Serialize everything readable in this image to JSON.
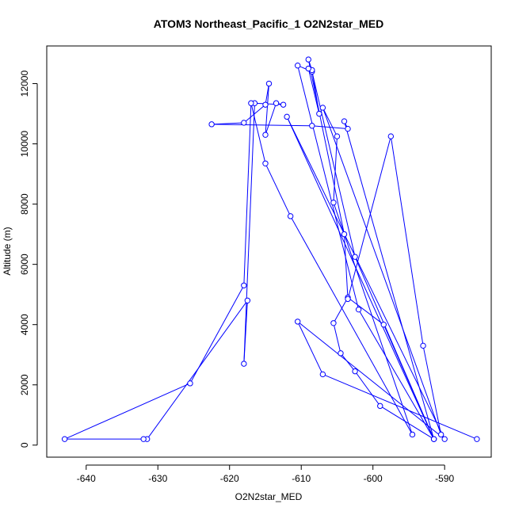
{
  "chart_data": {
    "type": "scatter",
    "title": "ATOM3 Northeast_Pacific_1 O2N2star_MED",
    "xlabel": "O2N2star_MED",
    "ylabel": "Altitude (m)",
    "xlim": [
      -645.5,
      -583.5
    ],
    "ylim": [
      -400,
      13250
    ],
    "x_ticks": [
      -640,
      -630,
      -620,
      -610,
      -600,
      -590
    ],
    "y_ticks": [
      0,
      2000,
      4000,
      6000,
      8000,
      10000,
      12000
    ],
    "grid": false,
    "legend": "none",
    "colors": {
      "series": "#0000ff",
      "axes": "#000000"
    },
    "series": [
      {
        "x": [
          -585.5,
          -607,
          -610.5,
          -590,
          -612,
          -591.5,
          -599,
          -602.5,
          -604.5,
          -605.5,
          -603.5,
          -598.5,
          -591.5,
          -602,
          -610.5,
          -608.5,
          -602.5,
          -591.5,
          -604,
          -603.5,
          -608.5,
          -622.5,
          -618,
          -615,
          -614.5,
          -615,
          -613.5,
          -612.5,
          -616.5,
          -618,
          -617.5,
          -631.5,
          -632,
          -643,
          -625.5,
          -618,
          -617,
          -615,
          -611.5,
          -594.5,
          -605.5,
          -605,
          -607,
          -590.5,
          -593,
          -597.5,
          -603.5,
          -604,
          -609,
          -608.5,
          -607.5,
          -609
        ],
        "y": [
          200,
          2350,
          4100,
          200,
          10900,
          200,
          1300,
          2450,
          3050,
          4050,
          4900,
          4000,
          200,
          4500,
          12600,
          12400,
          6250,
          200,
          10750,
          10500,
          10600,
          10650,
          10700,
          11300,
          12000,
          10300,
          11350,
          11300,
          11350,
          2700,
          4800,
          200,
          200,
          200,
          2050,
          5300,
          11350,
          9350,
          7600,
          350,
          8050,
          10250,
          11200,
          350,
          3300,
          10250,
          4850,
          7000,
          12800,
          12450,
          11000,
          12500
        ]
      }
    ]
  }
}
